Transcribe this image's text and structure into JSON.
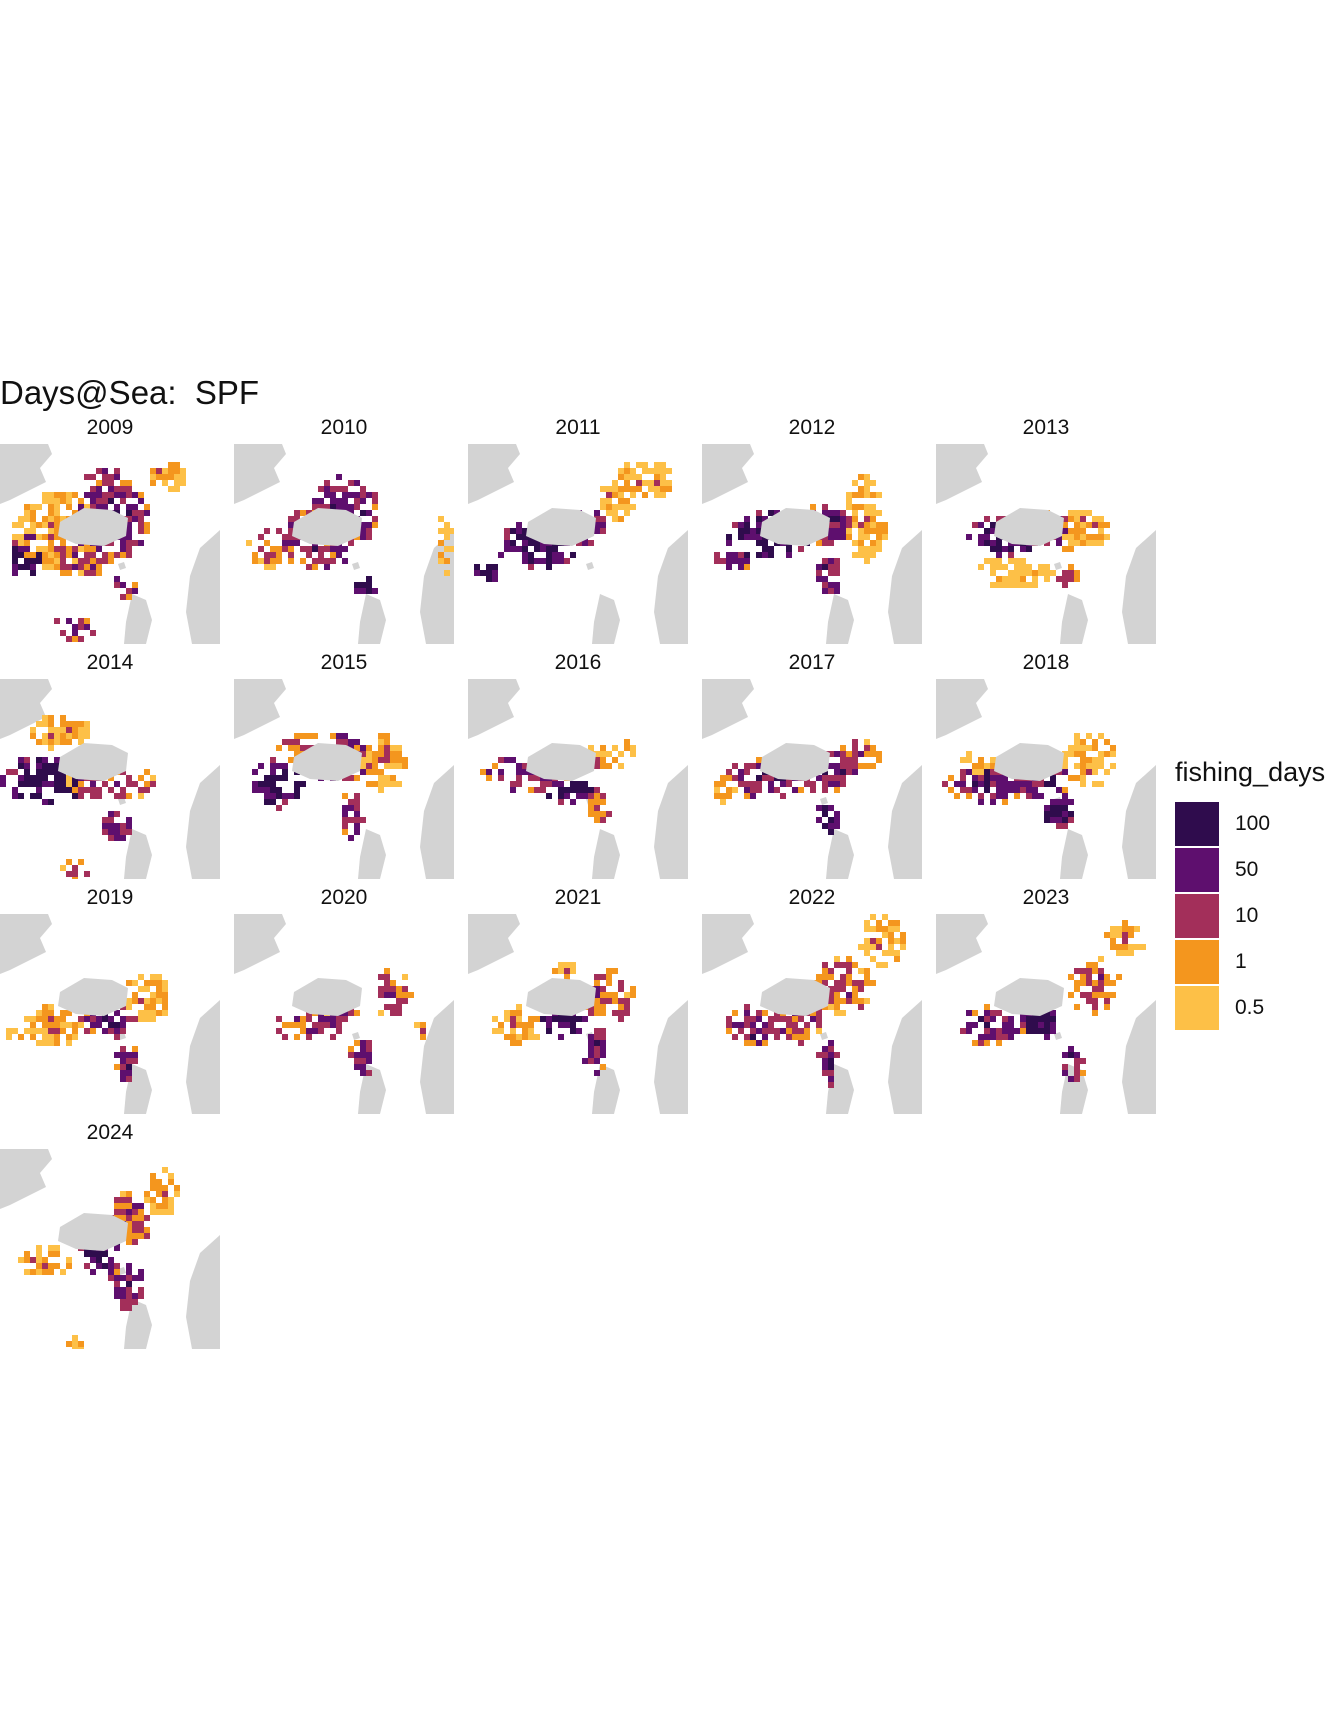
{
  "title": "Days@Sea:  SPF",
  "land_color": "#d3d3d3",
  "legend": {
    "title": "fishing_days",
    "items": [
      {
        "label": "100",
        "color": "#2f0c4d"
      },
      {
        "label": "50",
        "color": "#5e0f6e"
      },
      {
        "label": "10",
        "color": "#a32f5a"
      },
      {
        "label": "1",
        "color": "#f4961e"
      },
      {
        "label": "0.5",
        "color": "#fdc047"
      }
    ]
  },
  "panels": [
    {
      "year": "2009",
      "blobs": [
        [
          0.28,
          0.44,
          0.24,
          0.2,
          3
        ],
        [
          0.5,
          0.36,
          0.18,
          0.24,
          1
        ],
        [
          0.36,
          0.58,
          0.18,
          0.08,
          2
        ],
        [
          0.12,
          0.56,
          0.08,
          0.12,
          0
        ],
        [
          0.56,
          0.72,
          0.06,
          0.06,
          1
        ],
        [
          0.34,
          0.92,
          0.1,
          0.06,
          1
        ],
        [
          0.76,
          0.16,
          0.08,
          0.08,
          3
        ]
      ]
    },
    {
      "year": "2010",
      "blobs": [
        [
          0.38,
          0.46,
          0.2,
          0.16,
          1
        ],
        [
          0.5,
          0.34,
          0.16,
          0.18,
          1
        ],
        [
          0.16,
          0.52,
          0.1,
          0.1,
          2
        ],
        [
          0.6,
          0.72,
          0.06,
          0.06,
          0
        ],
        [
          0.96,
          0.5,
          0.04,
          0.16,
          3
        ]
      ]
    },
    {
      "year": "2011",
      "blobs": [
        [
          0.32,
          0.5,
          0.2,
          0.12,
          0
        ],
        [
          0.52,
          0.42,
          0.14,
          0.1,
          1
        ],
        [
          0.8,
          0.18,
          0.14,
          0.1,
          3
        ],
        [
          0.68,
          0.28,
          0.08,
          0.1,
          3
        ],
        [
          0.08,
          0.64,
          0.06,
          0.06,
          0
        ]
      ]
    },
    {
      "year": "2012",
      "blobs": [
        [
          0.3,
          0.46,
          0.2,
          0.12,
          0
        ],
        [
          0.56,
          0.4,
          0.14,
          0.1,
          1
        ],
        [
          0.74,
          0.38,
          0.1,
          0.22,
          3
        ],
        [
          0.58,
          0.66,
          0.06,
          0.1,
          1
        ],
        [
          0.14,
          0.58,
          0.08,
          0.06,
          1
        ]
      ]
    },
    {
      "year": "2013",
      "blobs": [
        [
          0.32,
          0.46,
          0.18,
          0.1,
          0
        ],
        [
          0.54,
          0.44,
          0.14,
          0.1,
          1
        ],
        [
          0.68,
          0.42,
          0.12,
          0.1,
          3
        ],
        [
          0.36,
          0.64,
          0.18,
          0.08,
          4
        ],
        [
          0.6,
          0.66,
          0.06,
          0.06,
          2
        ]
      ]
    },
    {
      "year": "2014",
      "blobs": [
        [
          0.22,
          0.5,
          0.22,
          0.12,
          0
        ],
        [
          0.52,
          0.52,
          0.22,
          0.08,
          2
        ],
        [
          0.28,
          0.26,
          0.14,
          0.1,
          3
        ],
        [
          0.54,
          0.74,
          0.08,
          0.08,
          1
        ],
        [
          0.34,
          0.96,
          0.06,
          0.06,
          2
        ]
      ]
    },
    {
      "year": "2015",
      "blobs": [
        [
          0.2,
          0.52,
          0.12,
          0.14,
          0
        ],
        [
          0.48,
          0.4,
          0.14,
          0.12,
          1
        ],
        [
          0.68,
          0.42,
          0.1,
          0.16,
          3
        ],
        [
          0.54,
          0.68,
          0.06,
          0.12,
          1
        ],
        [
          0.3,
          0.34,
          0.1,
          0.08,
          2
        ]
      ]
    },
    {
      "year": "2016",
      "blobs": [
        [
          0.26,
          0.48,
          0.2,
          0.1,
          1
        ],
        [
          0.46,
          0.56,
          0.12,
          0.06,
          0
        ],
        [
          0.6,
          0.4,
          0.12,
          0.06,
          3
        ],
        [
          0.6,
          0.62,
          0.06,
          0.1,
          2
        ],
        [
          0.72,
          0.34,
          0.06,
          0.06,
          3
        ]
      ]
    },
    {
      "year": "2017",
      "blobs": [
        [
          0.3,
          0.5,
          0.2,
          0.1,
          1
        ],
        [
          0.58,
          0.46,
          0.14,
          0.12,
          1
        ],
        [
          0.72,
          0.38,
          0.1,
          0.08,
          2
        ],
        [
          0.58,
          0.7,
          0.06,
          0.1,
          0
        ],
        [
          0.1,
          0.54,
          0.06,
          0.08,
          3
        ]
      ]
    },
    {
      "year": "2018",
      "blobs": [
        [
          0.26,
          0.52,
          0.22,
          0.1,
          1
        ],
        [
          0.48,
          0.48,
          0.14,
          0.12,
          1
        ],
        [
          0.7,
          0.4,
          0.12,
          0.14,
          3
        ],
        [
          0.56,
          0.66,
          0.08,
          0.08,
          0
        ],
        [
          0.2,
          0.42,
          0.08,
          0.06,
          3
        ]
      ]
    },
    {
      "year": "2019",
      "blobs": [
        [
          0.24,
          0.56,
          0.14,
          0.1,
          3
        ],
        [
          0.5,
          0.52,
          0.14,
          0.1,
          1
        ],
        [
          0.68,
          0.42,
          0.12,
          0.12,
          3
        ],
        [
          0.58,
          0.74,
          0.06,
          0.1,
          1
        ],
        [
          0.06,
          0.62,
          0.04,
          0.04,
          3
        ]
      ]
    },
    {
      "year": "2020",
      "blobs": [
        [
          0.34,
          0.56,
          0.16,
          0.08,
          2
        ],
        [
          0.46,
          0.5,
          0.1,
          0.08,
          1
        ],
        [
          0.72,
          0.4,
          0.1,
          0.12,
          2
        ],
        [
          0.58,
          0.72,
          0.06,
          0.1,
          1
        ],
        [
          0.86,
          0.58,
          0.04,
          0.04,
          3
        ]
      ]
    },
    {
      "year": "2021",
      "blobs": [
        [
          0.22,
          0.56,
          0.12,
          0.1,
          3
        ],
        [
          0.44,
          0.52,
          0.1,
          0.12,
          0
        ],
        [
          0.64,
          0.42,
          0.12,
          0.14,
          2
        ],
        [
          0.58,
          0.68,
          0.06,
          0.12,
          1
        ],
        [
          0.44,
          0.3,
          0.06,
          0.06,
          3
        ]
      ]
    },
    {
      "year": "2022",
      "blobs": [
        [
          0.24,
          0.56,
          0.14,
          0.1,
          1
        ],
        [
          0.46,
          0.52,
          0.1,
          0.14,
          2
        ],
        [
          0.64,
          0.36,
          0.14,
          0.14,
          2
        ],
        [
          0.82,
          0.14,
          0.1,
          0.14,
          3
        ],
        [
          0.58,
          0.74,
          0.06,
          0.12,
          1
        ]
      ]
    },
    {
      "year": "2023",
      "blobs": [
        [
          0.26,
          0.56,
          0.16,
          0.1,
          1
        ],
        [
          0.48,
          0.52,
          0.1,
          0.1,
          0
        ],
        [
          0.72,
          0.36,
          0.12,
          0.14,
          2
        ],
        [
          0.86,
          0.12,
          0.1,
          0.08,
          3
        ],
        [
          0.62,
          0.74,
          0.06,
          0.1,
          1
        ]
      ]
    },
    {
      "year": "2024",
      "blobs": [
        [
          0.2,
          0.56,
          0.12,
          0.08,
          3
        ],
        [
          0.46,
          0.5,
          0.1,
          0.14,
          0
        ],
        [
          0.6,
          0.34,
          0.12,
          0.14,
          2
        ],
        [
          0.74,
          0.22,
          0.08,
          0.12,
          3
        ],
        [
          0.58,
          0.68,
          0.08,
          0.12,
          1
        ],
        [
          0.34,
          0.98,
          0.04,
          0.04,
          3
        ]
      ]
    }
  ]
}
